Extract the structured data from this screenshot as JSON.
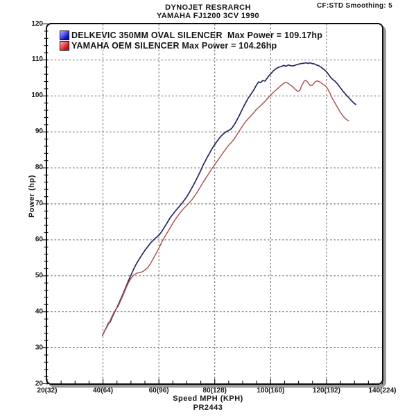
{
  "header": {
    "title_line1": "DYNOJET RESRARCH",
    "title_line2": "YAMAHA FJ1200 3CV 1990",
    "smoothing_note": "CF:STD Smoothing: 5"
  },
  "footer": {
    "run_id": "PR2443"
  },
  "colors": {
    "grid": "#4d4d4d",
    "frame": "#0a0a0a",
    "shadow": "#9b9b9b",
    "text": "#141414"
  },
  "chart_data": {
    "type": "line",
    "title": "DYNOJET RESRARCH",
    "subtitle": "YAMAHA FJ1200 3CV 1990",
    "xlabel": "Speed MPH (KPH)",
    "ylabel": "Power (hp)",
    "xlim": [
      20,
      140
    ],
    "ylim": [
      20,
      120
    ],
    "x_major_ticks": [
      20,
      40,
      60,
      80,
      100,
      120,
      140
    ],
    "x_tick_labels": [
      "20(32)",
      "40(64)",
      "60(96)",
      "80(128)",
      "100(160)",
      "120(192)",
      "140(224)"
    ],
    "x_minor_step": 5,
    "y_major_ticks": [
      20,
      30,
      40,
      50,
      60,
      70,
      80,
      90,
      100,
      110,
      120
    ],
    "y_minor_step": 2,
    "grid": "dashed lines at every major tick, both axes",
    "legend_position": "top-left inside plot",
    "series": [
      {
        "name": "DELKEVIC 350MM OVAL SILENCER",
        "legend_label": "DELKEVIC 350MM OVAL SILENCER  Max Power = 109.17hp",
        "max_power_hp": 109.17,
        "line_color": "#26265e",
        "swatch_colors": [
          "#9d9dff",
          "#0f0fd0"
        ],
        "points": [
          [
            39.8,
            33.4
          ],
          [
            40.5,
            34.6
          ],
          [
            41.2,
            35.6
          ],
          [
            42,
            36.9
          ],
          [
            42.5,
            37.1
          ],
          [
            43.2,
            38.4
          ],
          [
            44,
            39.7
          ],
          [
            45,
            41.2
          ],
          [
            46,
            42.9
          ],
          [
            47,
            44.7
          ],
          [
            48,
            46.5
          ],
          [
            49,
            48.4
          ],
          [
            50,
            50.2
          ],
          [
            51,
            51.9
          ],
          [
            52,
            53.4
          ],
          [
            53,
            54.7
          ],
          [
            54,
            55.9
          ],
          [
            55,
            57.1
          ],
          [
            56,
            58.1
          ],
          [
            57,
            59.1
          ],
          [
            58,
            59.9
          ],
          [
            59,
            60.6
          ],
          [
            60,
            61.3
          ],
          [
            61,
            62.3
          ],
          [
            62,
            63.5
          ],
          [
            63,
            64.8
          ],
          [
            64,
            66.1
          ],
          [
            65,
            67.1
          ],
          [
            66,
            68.1
          ],
          [
            67,
            69.0
          ],
          [
            68,
            69.9
          ],
          [
            69,
            70.9
          ],
          [
            70,
            72.0
          ],
          [
            71,
            73.3
          ],
          [
            72,
            74.7
          ],
          [
            73,
            76.1
          ],
          [
            74,
            77.7
          ],
          [
            75,
            79.3
          ],
          [
            76,
            81.0
          ],
          [
            77,
            82.5
          ],
          [
            78,
            83.9
          ],
          [
            79,
            85.3
          ],
          [
            80,
            86.5
          ],
          [
            81,
            87.6
          ],
          [
            82,
            88.6
          ],
          [
            83,
            89.4
          ],
          [
            84,
            90.0
          ],
          [
            85,
            90.4
          ],
          [
            86,
            90.9
          ],
          [
            87,
            92.0
          ],
          [
            88,
            93.4
          ],
          [
            89,
            94.9
          ],
          [
            90,
            96.5
          ],
          [
            91,
            98.0
          ],
          [
            92,
            99.4
          ],
          [
            93,
            100.5
          ],
          [
            94,
            101.7
          ],
          [
            95,
            103.1
          ],
          [
            95.7,
            103.9
          ],
          [
            96.4,
            103.7
          ],
          [
            97.2,
            104.3
          ],
          [
            98,
            104.1
          ],
          [
            98.8,
            105.0
          ],
          [
            99.5,
            105.7
          ],
          [
            100.3,
            106.3
          ],
          [
            101,
            107.0
          ],
          [
            102,
            107.6
          ],
          [
            103,
            108.0
          ],
          [
            104,
            108.2
          ],
          [
            104.8,
            108.5
          ],
          [
            105.5,
            108.2
          ],
          [
            106.3,
            108.6
          ],
          [
            107.2,
            108.4
          ],
          [
            108,
            108.3
          ],
          [
            109,
            108.6
          ],
          [
            110,
            108.8
          ],
          [
            111,
            109.0
          ],
          [
            112,
            109.1
          ],
          [
            112.7,
            109.2
          ],
          [
            113.4,
            109.0
          ],
          [
            114,
            109.2
          ],
          [
            114.8,
            109.0
          ],
          [
            115.6,
            108.9
          ],
          [
            116.4,
            108.6
          ],
          [
            117.2,
            108.4
          ],
          [
            118,
            108.0
          ],
          [
            119,
            107.4
          ],
          [
            120,
            106.7
          ],
          [
            120.8,
            105.9
          ],
          [
            121.5,
            105.1
          ],
          [
            122.3,
            104.5
          ],
          [
            123,
            104.1
          ],
          [
            124,
            103.3
          ],
          [
            125,
            102.2
          ],
          [
            126,
            101.2
          ],
          [
            127,
            100.3
          ],
          [
            128,
            99.5
          ],
          [
            129,
            98.6
          ],
          [
            130,
            97.9
          ],
          [
            130.5,
            97.6
          ]
        ]
      },
      {
        "name": "YAMAHA OEM SILENCER",
        "legend_label": "YAMAHA OEM SILENCER Max Power = 104.26hp",
        "max_power_hp": 104.26,
        "line_color": "#b05454",
        "swatch_colors": [
          "#ffa0a0",
          "#d01010"
        ],
        "points": [
          [
            39.8,
            33.4
          ],
          [
            40.6,
            34.7
          ],
          [
            41.3,
            35.6
          ],
          [
            42,
            36.6
          ],
          [
            43,
            38.4
          ],
          [
            44,
            40.0
          ],
          [
            44.7,
            40.8
          ],
          [
            45.4,
            41.5
          ],
          [
            46,
            42.5
          ],
          [
            47,
            44.3
          ],
          [
            48,
            46.1
          ],
          [
            49,
            47.9
          ],
          [
            50,
            49.3
          ],
          [
            51,
            50.2
          ],
          [
            52,
            50.7
          ],
          [
            53,
            50.9
          ],
          [
            54,
            51.1
          ],
          [
            55,
            51.6
          ],
          [
            56,
            52.3
          ],
          [
            57,
            53.4
          ],
          [
            58,
            54.8
          ],
          [
            59,
            56.2
          ],
          [
            60,
            57.7
          ],
          [
            61,
            59.3
          ],
          [
            62,
            60.7
          ],
          [
            63,
            62.0
          ],
          [
            64,
            63.3
          ],
          [
            65,
            64.6
          ],
          [
            66,
            65.8
          ],
          [
            67,
            66.9
          ],
          [
            68,
            67.9
          ],
          [
            69,
            68.8
          ],
          [
            70,
            69.6
          ],
          [
            71,
            70.4
          ],
          [
            72,
            71.3
          ],
          [
            73,
            72.4
          ],
          [
            74,
            73.6
          ],
          [
            75,
            74.9
          ],
          [
            76,
            76.2
          ],
          [
            77,
            77.4
          ],
          [
            78,
            78.6
          ],
          [
            79,
            79.8
          ],
          [
            80,
            80.9
          ],
          [
            81,
            82.0
          ],
          [
            82,
            83.1
          ],
          [
            83,
            84.2
          ],
          [
            84,
            85.3
          ],
          [
            85,
            86.3
          ],
          [
            86,
            87.1
          ],
          [
            87,
            88.1
          ],
          [
            88,
            89.3
          ],
          [
            89,
            90.5
          ],
          [
            90,
            91.7
          ],
          [
            91,
            92.8
          ],
          [
            92,
            93.7
          ],
          [
            93,
            94.5
          ],
          [
            94,
            95.4
          ],
          [
            95,
            96.3
          ],
          [
            96,
            97.0
          ],
          [
            97,
            97.7
          ],
          [
            98,
            98.5
          ],
          [
            99,
            99.4
          ],
          [
            100,
            100.2
          ],
          [
            101,
            101.0
          ],
          [
            102,
            101.7
          ],
          [
            103,
            102.4
          ],
          [
            103.8,
            102.9
          ],
          [
            104.5,
            103.4
          ],
          [
            105.3,
            103.8
          ],
          [
            106,
            103.6
          ],
          [
            106.8,
            103.2
          ],
          [
            107.5,
            102.8
          ],
          [
            108.2,
            102.3
          ],
          [
            109,
            101.7
          ],
          [
            109.8,
            101.2
          ],
          [
            110.5,
            101.6
          ],
          [
            111.2,
            103.0
          ],
          [
            112,
            104.1
          ],
          [
            112.6,
            104.3
          ],
          [
            113.3,
            103.8
          ],
          [
            114,
            103.0
          ],
          [
            114.8,
            102.9
          ],
          [
            115.5,
            103.5
          ],
          [
            116.2,
            104.1
          ],
          [
            117,
            104.1
          ],
          [
            117.8,
            103.8
          ],
          [
            118.5,
            103.4
          ],
          [
            119.2,
            103.0
          ],
          [
            120,
            102.5
          ],
          [
            120.7,
            101.6
          ],
          [
            121.4,
            100.5
          ],
          [
            122,
            99.4
          ],
          [
            122.8,
            98.3
          ],
          [
            123.5,
            97.4
          ],
          [
            124.2,
            96.5
          ],
          [
            125,
            95.4
          ],
          [
            125.8,
            94.5
          ],
          [
            126.5,
            93.9
          ],
          [
            127.2,
            93.4
          ],
          [
            127.9,
            93.1
          ]
        ]
      }
    ]
  }
}
